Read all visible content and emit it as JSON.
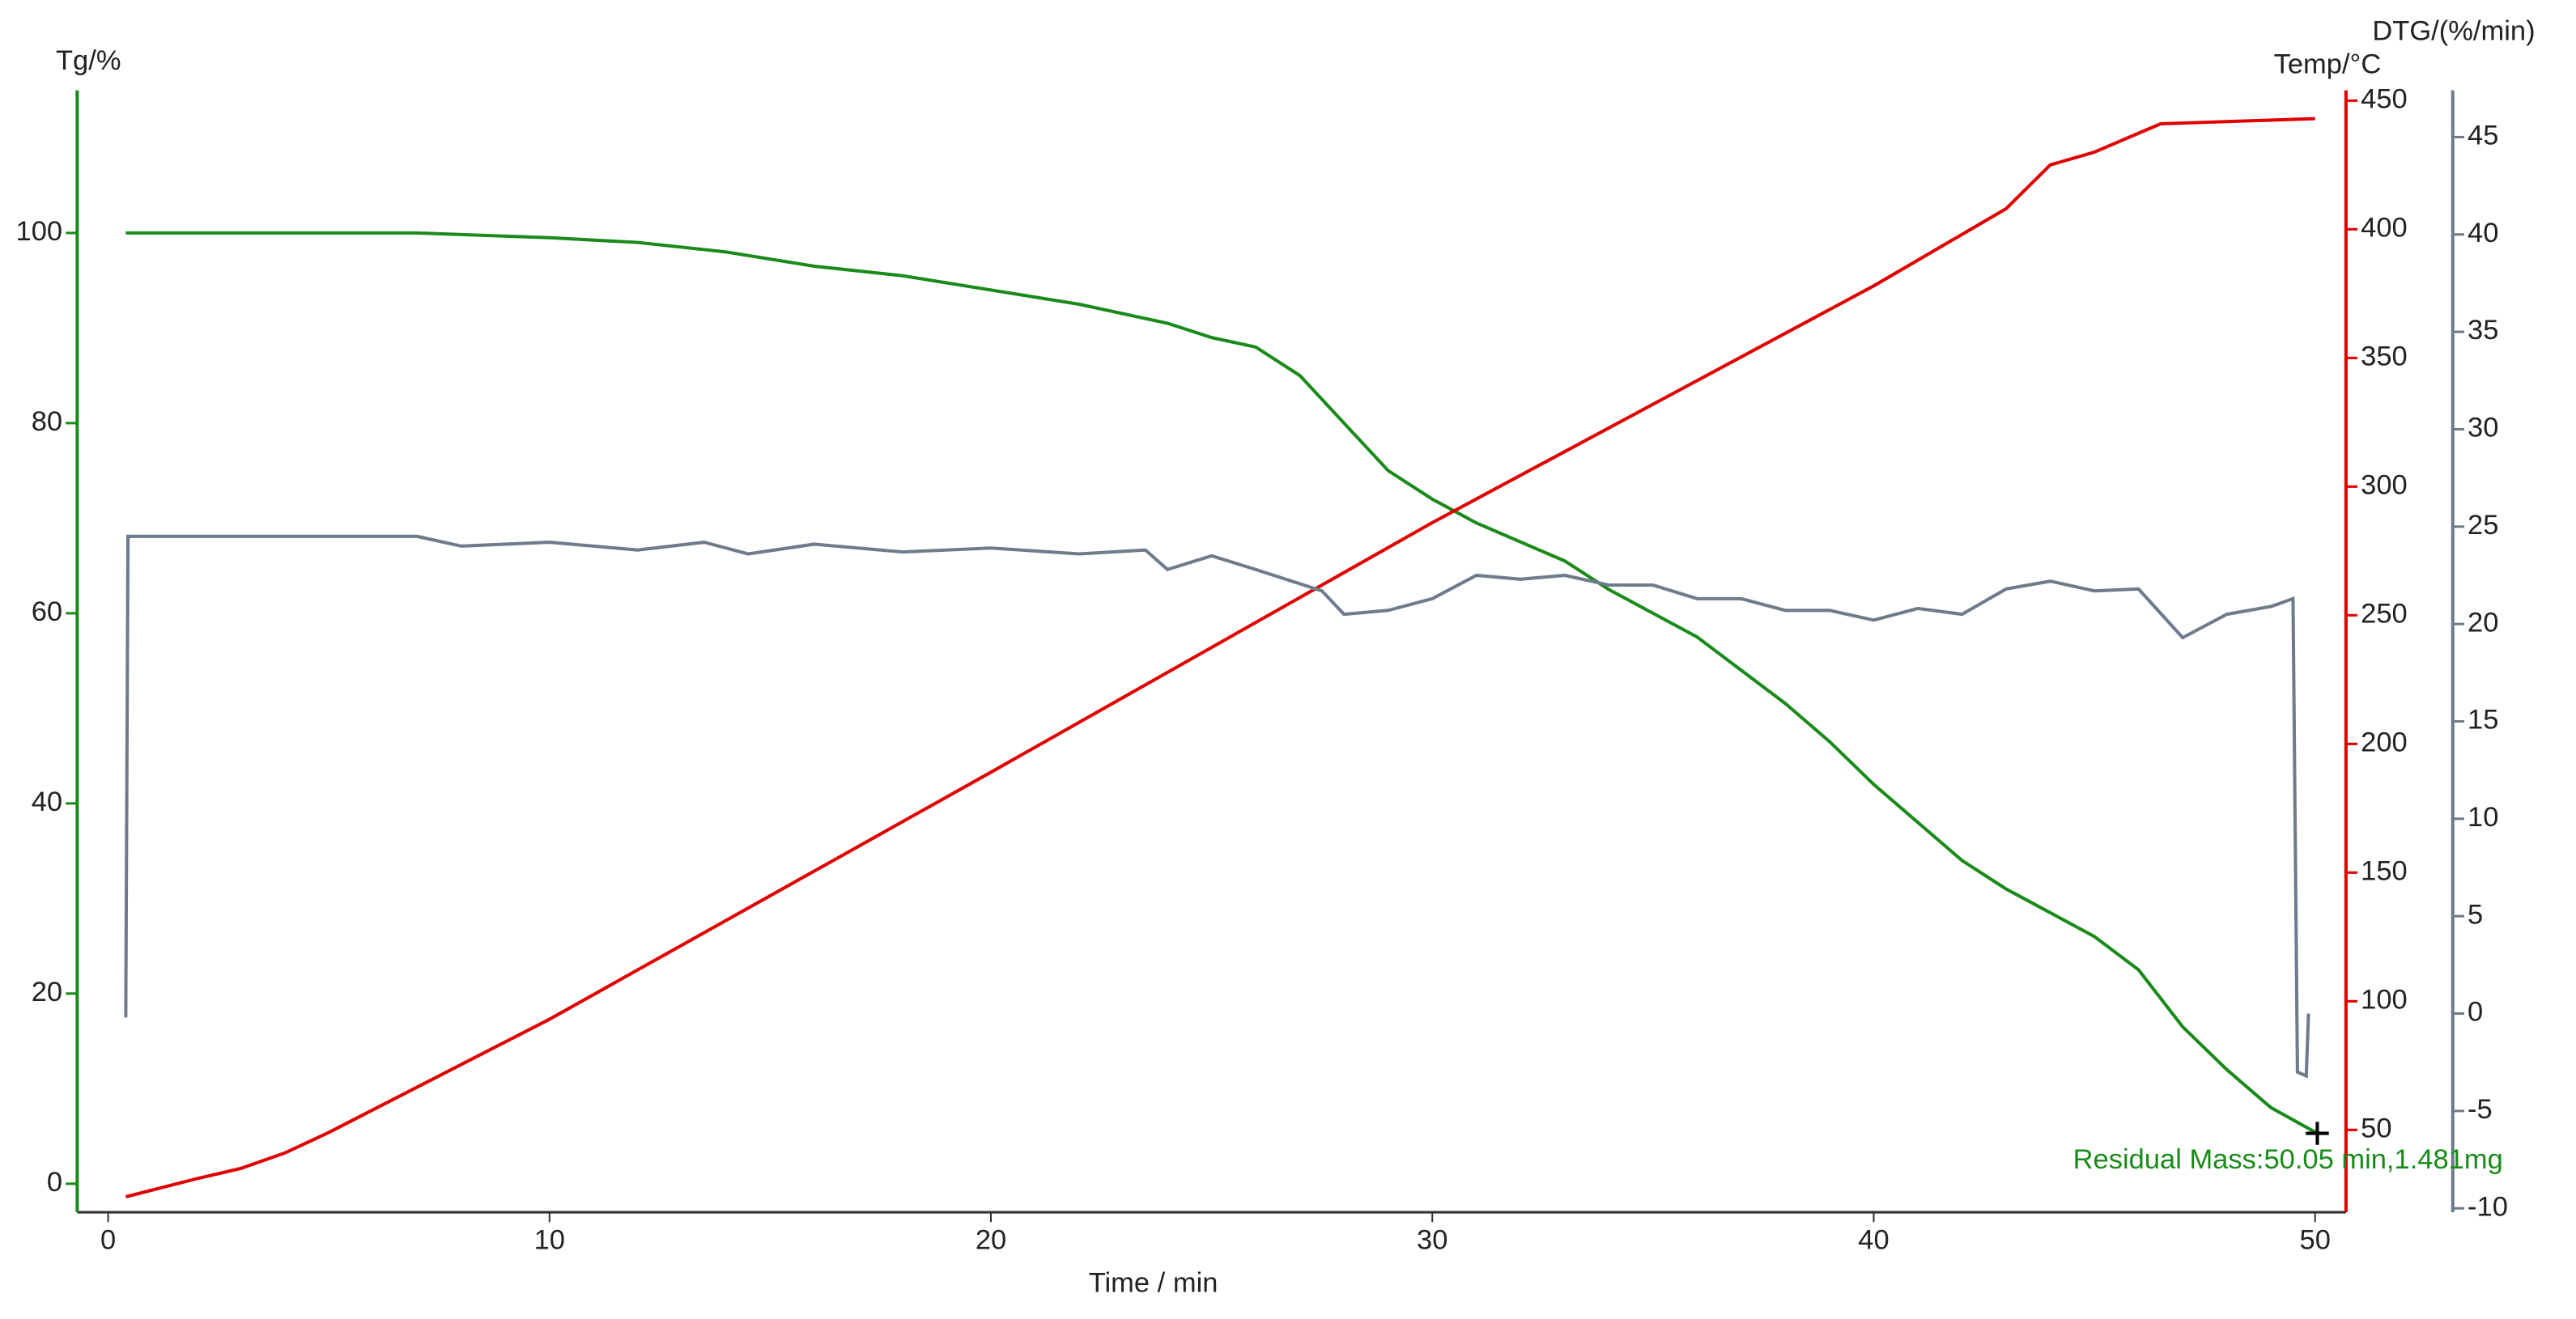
{
  "chart_data": {
    "type": "line",
    "xlabel": "Time / min",
    "ylabel": "Tg/%",
    "y2label": "Temp/°C",
    "y3label": "DTG/(%/min)",
    "xlim": [
      -0.7,
      50.7
    ],
    "xticks": [
      0,
      10,
      20,
      30,
      40,
      50
    ],
    "ylim": [
      -3,
      115
    ],
    "yticks": [
      0,
      20,
      40,
      60,
      80,
      100
    ],
    "ycolor": "#1a8a1a",
    "y2lim": [
      18,
      454
    ],
    "y2ticks": [
      50,
      100,
      150,
      200,
      250,
      300,
      350,
      400,
      450
    ],
    "y2color": "#e00000",
    "y3lim": [
      -10.2,
      47.4
    ],
    "y3ticks": [
      -10,
      -5,
      0,
      5,
      10,
      15,
      20,
      25,
      30,
      35,
      40,
      45
    ],
    "y3color": "#6e7b8b",
    "series": [
      {
        "name": "Tg",
        "color": "#1a8a1a",
        "axis": "y",
        "x": [
          0.4,
          5,
          7,
          10,
          12,
          14,
          16,
          18,
          20,
          22,
          24,
          25,
          26,
          27,
          28,
          29,
          30,
          31,
          32,
          33,
          34,
          35,
          36,
          37,
          38,
          39,
          40,
          41,
          42,
          43,
          44,
          45,
          46,
          47,
          48,
          49,
          50.05
        ],
        "values": [
          100,
          100,
          100,
          99.5,
          99,
          98,
          96.5,
          95.5,
          94,
          92.5,
          90.5,
          89,
          88,
          85,
          80,
          75,
          72,
          69.5,
          67.5,
          65.5,
          62.5,
          60,
          57.5,
          54,
          50.5,
          46.5,
          42,
          38,
          34,
          31,
          28.5,
          26,
          22.5,
          16.5,
          12,
          8,
          5.3
        ]
      },
      {
        "name": "Temp",
        "color": "#e00000",
        "axis": "y2",
        "x": [
          0.4,
          2,
          3,
          4,
          5,
          10,
          20,
          30,
          40,
          43,
          44,
          45,
          46.5,
          50
        ],
        "values": [
          24,
          31,
          35,
          41,
          49,
          93,
          189,
          286,
          378,
          408,
          425,
          430,
          441,
          443
        ]
      },
      {
        "name": "DTG",
        "color": "#6e7b8b",
        "axis": "y3",
        "x": [
          0.4,
          0.45,
          1,
          5,
          7,
          8,
          10,
          12,
          13.5,
          14.5,
          16,
          18,
          20,
          22,
          23.5,
          24,
          25,
          26,
          27.5,
          28,
          29,
          30,
          31,
          32,
          33,
          34,
          35,
          36,
          37,
          38,
          39,
          40,
          41,
          42,
          43,
          44,
          45,
          46,
          47,
          48,
          49,
          49.5,
          49.6,
          49.8,
          49.85
        ],
        "values": [
          -0.2,
          24.5,
          24.5,
          24.5,
          24.5,
          24,
          24.2,
          23.8,
          24.2,
          23.6,
          24.1,
          23.7,
          23.9,
          23.6,
          23.8,
          22.8,
          23.5,
          22.8,
          21.7,
          20.5,
          20.7,
          21.3,
          22.5,
          22.3,
          22.5,
          22,
          22,
          21.3,
          21.3,
          20.7,
          20.7,
          20.2,
          20.8,
          20.5,
          21.8,
          22.2,
          21.7,
          21.8,
          19.3,
          20.5,
          20.9,
          21.3,
          -3,
          -3.2,
          0
        ]
      }
    ],
    "annotation": {
      "text": "Residual Mass:50.05 min,1.481mg",
      "x": 50.05,
      "y": 5.3,
      "color": "#1a8a1a"
    }
  }
}
